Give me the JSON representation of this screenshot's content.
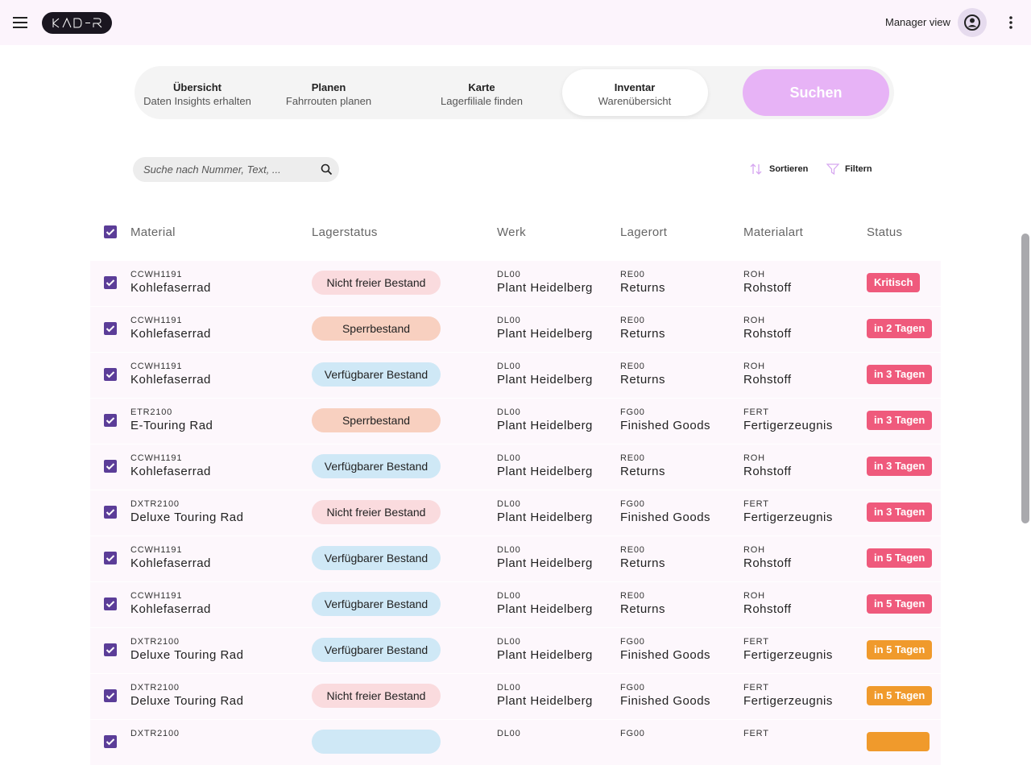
{
  "header": {
    "manager_view": "Manager view"
  },
  "tabs": [
    {
      "title": "Übersicht",
      "subtitle": "Daten Insights erhalten"
    },
    {
      "title": "Planen",
      "subtitle": "Fahrrouten planen"
    },
    {
      "title": "Karte",
      "subtitle": "Lagerfiliale finden"
    },
    {
      "title": "Inventar",
      "subtitle": "Warenübersicht",
      "active": true
    }
  ],
  "search_button": "Suchen",
  "search": {
    "placeholder": "Suche nach Nummer, Text, ..."
  },
  "actions": [
    "Sortieren",
    "Filtern"
  ],
  "table": {
    "columns": [
      "Material",
      "Lagerstatus",
      "Werk",
      "Lagerort",
      "Materialart",
      "Status"
    ],
    "rows": [
      {
        "code": "CCWH1191",
        "material": "Kohlefaserrad",
        "lagerstatus": "Nicht freier Bestand",
        "lagerstatus_color": "#fadbde",
        "werk_code": "DL00",
        "werk": "Plant Heidelberg",
        "lagerort_code": "RE00",
        "lagerort": "Returns",
        "art_code": "ROH",
        "art": "Rohstoff",
        "status": "Kritisch",
        "status_color": "#ef5a7c"
      },
      {
        "code": "CCWH1191",
        "material": "Kohlefaserrad",
        "lagerstatus": "Sperrbestand",
        "lagerstatus_color": "#f8d0c0",
        "werk_code": "DL00",
        "werk": "Plant Heidelberg",
        "lagerort_code": "RE00",
        "lagerort": "Returns",
        "art_code": "ROH",
        "art": "Rohstoff",
        "status": "in 2 Tagen",
        "status_color": "#ef5a7c"
      },
      {
        "code": "CCWH1191",
        "material": "Kohlefaserrad",
        "lagerstatus": "Verfügbarer Bestand",
        "lagerstatus_color": "#cfe8f6",
        "werk_code": "DL00",
        "werk": "Plant Heidelberg",
        "lagerort_code": "RE00",
        "lagerort": "Returns",
        "art_code": "ROH",
        "art": "Rohstoff",
        "status": "in 3 Tagen",
        "status_color": "#ef5a7c"
      },
      {
        "code": "ETR2100",
        "material": "E-Touring Rad",
        "lagerstatus": "Sperrbestand",
        "lagerstatus_color": "#f8d0c0",
        "werk_code": "DL00",
        "werk": "Plant Heidelberg",
        "lagerort_code": "FG00",
        "lagerort": "Finished Goods",
        "art_code": "FERT",
        "art": "Fertigerzeugnis",
        "status": "in 3 Tagen",
        "status_color": "#ef5a7c"
      },
      {
        "code": "CCWH1191",
        "material": "Kohlefaserrad",
        "lagerstatus": "Verfügbarer Bestand",
        "lagerstatus_color": "#cfe8f6",
        "werk_code": "DL00",
        "werk": "Plant Heidelberg",
        "lagerort_code": "RE00",
        "lagerort": "Returns",
        "art_code": "ROH",
        "art": "Rohstoff",
        "status": "in 3 Tagen",
        "status_color": "#ef5a7c"
      },
      {
        "code": "DXTR2100",
        "material": "Deluxe Touring Rad",
        "lagerstatus": "Nicht freier Bestand",
        "lagerstatus_color": "#fadbde",
        "werk_code": "DL00",
        "werk": "Plant Heidelberg",
        "lagerort_code": "FG00",
        "lagerort": "Finished Goods",
        "art_code": "FERT",
        "art": "Fertigerzeugnis",
        "status": "in 3 Tagen",
        "status_color": "#ef5a7c"
      },
      {
        "code": "CCWH1191",
        "material": "Kohlefaserrad",
        "lagerstatus": "Verfügbarer Bestand",
        "lagerstatus_color": "#cfe8f6",
        "werk_code": "DL00",
        "werk": "Plant Heidelberg",
        "lagerort_code": "RE00",
        "lagerort": "Returns",
        "art_code": "ROH",
        "art": "Rohstoff",
        "status": "in 5 Tagen",
        "status_color": "#ef5a7c"
      },
      {
        "code": "CCWH1191",
        "material": "Kohlefaserrad",
        "lagerstatus": "Verfügbarer Bestand",
        "lagerstatus_color": "#cfe8f6",
        "werk_code": "DL00",
        "werk": "Plant Heidelberg",
        "lagerort_code": "RE00",
        "lagerort": "Returns",
        "art_code": "ROH",
        "art": "Rohstoff",
        "status": "in 5 Tagen",
        "status_color": "#ef5a7c"
      },
      {
        "code": "DXTR2100",
        "material": "Deluxe Touring Rad",
        "lagerstatus": "Verfügbarer Bestand",
        "lagerstatus_color": "#cfe8f6",
        "werk_code": "DL00",
        "werk": "Plant Heidelberg",
        "lagerort_code": "FG00",
        "lagerort": "Finished Goods",
        "art_code": "FERT",
        "art": "Fertigerzeugnis",
        "status": "in 5 Tagen",
        "status_color": "#f09a2c"
      },
      {
        "code": "DXTR2100",
        "material": "Deluxe Touring Rad",
        "lagerstatus": "Nicht freier Bestand",
        "lagerstatus_color": "#fadbde",
        "werk_code": "DL00",
        "werk": "Plant Heidelberg",
        "lagerort_code": "FG00",
        "lagerort": "Finished Goods",
        "art_code": "FERT",
        "art": "Fertigerzeugnis",
        "status": "in 5 Tagen",
        "status_color": "#f09a2c"
      },
      {
        "code": "DXTR2100",
        "lagerstatus_color": "#cfe8f6",
        "werk_code": "DL00",
        "lagerort_code": "FG00",
        "art_code": "FERT",
        "status_color": "#f09a2c"
      }
    ]
  }
}
